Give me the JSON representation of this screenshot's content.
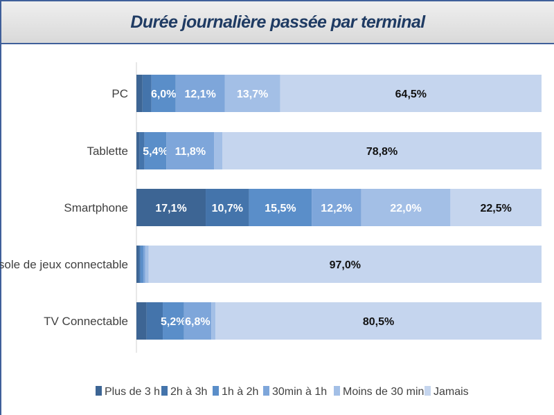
{
  "chart_data": {
    "type": "bar",
    "orientation": "horizontal",
    "stacked": "100%",
    "title": "Durée journalière passée par terminal",
    "categories": [
      "PC",
      "Tablette",
      "Smartphone",
      "Console de jeux connectable",
      "TV Connectable"
    ],
    "series": [
      {
        "name": "Plus de 3 h",
        "color": "#3d6594",
        "values": [
          1.5,
          0.8,
          17.1,
          0.6,
          2.5
        ]
      },
      {
        "name": "2h à 3h",
        "color": "#4474ab",
        "values": [
          2.2,
          1.2,
          10.7,
          0.4,
          4.0
        ]
      },
      {
        "name": "1h à 2h",
        "color": "#5a8ec9",
        "values": [
          6.0,
          5.4,
          15.5,
          0.7,
          5.2
        ]
      },
      {
        "name": "30min à 1h",
        "color": "#7ea6da",
        "values": [
          12.1,
          11.8,
          12.2,
          0.5,
          6.8
        ]
      },
      {
        "name": "Moins de 30 min",
        "color": "#a3bfe6",
        "values": [
          13.7,
          2.0,
          22.0,
          0.8,
          1.0
        ]
      },
      {
        "name": "Jamais",
        "color": "#c5d5ee",
        "values": [
          64.5,
          78.8,
          22.5,
          97.0,
          80.5
        ]
      }
    ],
    "data_labels": [
      [
        "",
        "",
        "6,0%",
        "12,1%",
        "13,7%",
        "64,5%"
      ],
      [
        "",
        "",
        "5,4%",
        "11,8%",
        "",
        "78,8%"
      ],
      [
        "17,1%",
        "10,7%",
        "15,5%",
        "12,2%",
        "22,0%",
        "22,5%"
      ],
      [
        "",
        "",
        "",
        "",
        "",
        "97,0%"
      ],
      [
        "",
        "",
        "5,2%",
        "6,8%",
        "",
        "80,5%"
      ]
    ],
    "xlim": [
      0,
      100
    ],
    "grid": false,
    "legend_position": "bottom"
  }
}
